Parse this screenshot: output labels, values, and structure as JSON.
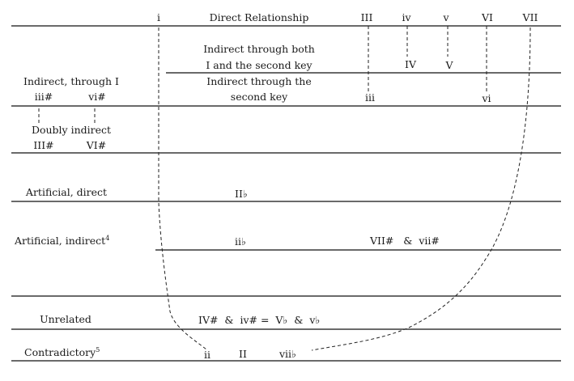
{
  "header": {
    "i": "i",
    "direct_relationship": "Direct Relationship",
    "III": "III",
    "iv": "iv",
    "v": "v",
    "VI": "VI",
    "VII": "VII"
  },
  "row_both": {
    "label_line1": "Indirect through both",
    "label_line2": "I and the second key",
    "IV": "IV",
    "V": "V"
  },
  "row_second": {
    "label_line1": "Indirect through the",
    "label_line2": "second key",
    "iii": "iii",
    "vi": "vi"
  },
  "row_through_I": {
    "label": "Indirect, through I",
    "iii_sharp": "iii#",
    "vi_sharp": "vi#"
  },
  "row_doubly": {
    "label": "Doubly indirect",
    "III_sharp": "III#",
    "VI_sharp": "VI#"
  },
  "row_artificial_direct": {
    "label": "Artificial, direct",
    "II_flat": "II♭"
  },
  "row_artificial_indirect": {
    "label": "Artificial, indirect",
    "footnote": "4",
    "ii_flat": "ii♭",
    "sharps": "VII#   &  vii#"
  },
  "row_unrelated": {
    "label": "Unrelated",
    "content": "IV#  &  iv# =  V♭  &  v♭"
  },
  "row_contradictory": {
    "label": "Contradictory",
    "footnote": "5",
    "ii": "ii",
    "II": "II",
    "vii_flat": "vii♭"
  }
}
